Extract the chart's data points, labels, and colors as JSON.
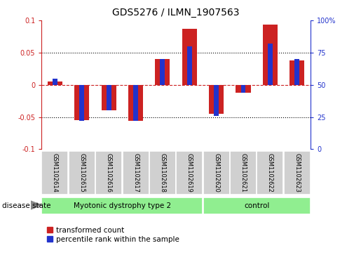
{
  "title": "GDS5276 / ILMN_1907563",
  "samples": [
    "GSM1102614",
    "GSM1102615",
    "GSM1102616",
    "GSM1102617",
    "GSM1102618",
    "GSM1102619",
    "GSM1102620",
    "GSM1102621",
    "GSM1102622",
    "GSM1102623"
  ],
  "red_values": [
    0.005,
    -0.055,
    -0.04,
    -0.056,
    0.04,
    0.087,
    -0.045,
    -0.012,
    0.093,
    0.038
  ],
  "blue_values_as_pct": [
    55,
    22,
    30,
    22,
    70,
    80,
    26,
    44,
    82,
    70
  ],
  "red_color": "#CC2222",
  "blue_color": "#2233CC",
  "ylim_left": [
    -0.1,
    0.1
  ],
  "ylim_right": [
    0,
    100
  ],
  "yticks_left": [
    -0.1,
    -0.05,
    0.0,
    0.05,
    0.1
  ],
  "ytick_left_labels": [
    "-0.1",
    "-0.05",
    "0",
    "0.05",
    "0.1"
  ],
  "yticks_right": [
    0,
    25,
    50,
    75,
    100
  ],
  "ytick_right_labels": [
    "0",
    "25",
    "50",
    "75",
    "100%"
  ],
  "group1_label": "Myotonic dystrophy type 2",
  "group2_label": "control",
  "group1_samples": 6,
  "group2_samples": 4,
  "disease_state_label": "disease state",
  "legend_red": "transformed count",
  "legend_blue": "percentile rank within the sample",
  "background_color": "#ffffff",
  "plot_bg": "#ffffff",
  "group_bg": "#90EE90",
  "sample_box_bg": "#d0d0d0",
  "bar_width": 0.55,
  "blue_bar_width": 0.18
}
